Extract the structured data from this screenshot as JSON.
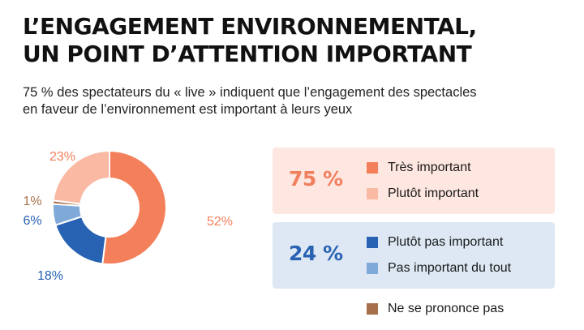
{
  "title_lines": [
    "L’ENGAGEMENT ENVIRONNEMENTAL,",
    "UN POINT D’ATTENTION IMPORTANT"
  ],
  "subtitle_lines": [
    "75 % des spectateurs du « live » indiquent que l’engagement des spectacles",
    "en faveur de l’environnement est important à leurs yeux"
  ],
  "groups": [
    {
      "total_label": "75 %",
      "items": [
        {
          "label": "Très important",
          "color": "#f47f5b"
        },
        {
          "label": "Plutôt important",
          "color": "#f9b9a3"
        }
      ]
    },
    {
      "total_label": "24 %",
      "items": [
        {
          "label": "Plutôt pas important",
          "color": "#2762b3"
        },
        {
          "label": "Pas important du tout",
          "color": "#7fa9d9"
        }
      ]
    }
  ],
  "extra_legend": {
    "label": "Ne se prononce pas",
    "color": "#a8704a"
  },
  "chart_data": {
    "type": "pie",
    "donut": true,
    "slices": [
      {
        "name": "Très important",
        "value": 52,
        "label": "52%",
        "color": "#f47f5b",
        "label_color": "#f47f5b"
      },
      {
        "name": "Plutôt pas important",
        "value": 18,
        "label": "18%",
        "color": "#2762b3",
        "label_color": "#2762b3"
      },
      {
        "name": "Pas important du tout",
        "value": 6,
        "label": "6%",
        "color": "#7fa9d9",
        "label_color": "#2762b3"
      },
      {
        "name": "Ne se prononce pas",
        "value": 1,
        "label": "1%",
        "color": "#a8704a",
        "label_color": "#a8704a"
      },
      {
        "name": "Plutôt important",
        "value": 23,
        "label": "23%",
        "color": "#f9b9a3",
        "label_color": "#f47f5b"
      }
    ]
  }
}
